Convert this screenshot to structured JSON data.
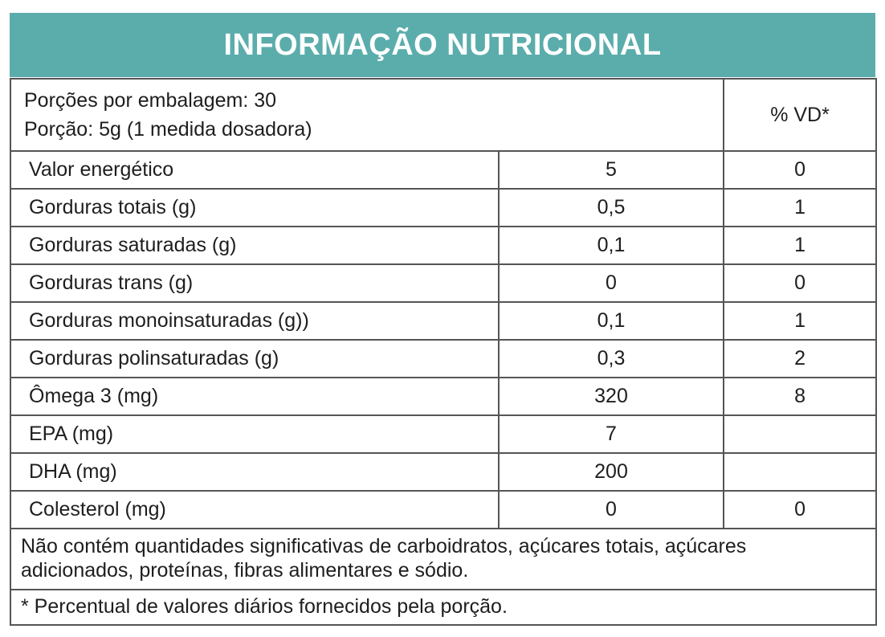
{
  "header": {
    "title": "INFORMAÇÃO NUTRICIONAL"
  },
  "serving": {
    "servings_per_package": "Porções por embalagem: 30",
    "serving_size": "Porção: 5g (1 medida dosadora)",
    "vd_column_header": "% VD*"
  },
  "rows": [
    {
      "label": "Valor energético",
      "value": "5",
      "vd": "0"
    },
    {
      "label": "Gorduras totais (g)",
      "value": "0,5",
      "vd": "1"
    },
    {
      "label": "Gorduras saturadas (g)",
      "value": "0,1",
      "vd": "1"
    },
    {
      "label": "Gorduras trans (g)",
      "value": "0",
      "vd": "0"
    },
    {
      "label": "Gorduras monoinsaturadas (g))",
      "value": "0,1",
      "vd": "1"
    },
    {
      "label": "Gorduras polinsaturadas (g)",
      "value": "0,3",
      "vd": "2"
    },
    {
      "label": "Ômega 3 (mg)",
      "value": "320",
      "vd": "8"
    },
    {
      "label": "EPA (mg)",
      "value": "7",
      "vd": ""
    },
    {
      "label": "DHA (mg)",
      "value": "200",
      "vd": ""
    },
    {
      "label": "Colesterol (mg)",
      "value": "0",
      "vd": "0"
    }
  ],
  "footnotes": {
    "no_significant_amounts": "Não contém quantidades significativas de carboidratos, açúcares totais, açúcares adicionados, proteínas, fibras alimentares e sódio.",
    "daily_values_note": "* Percentual de valores diários fornecidos pela porção."
  },
  "colors": {
    "accent_teal": "#5BADAC",
    "border_gray": "#555555",
    "text": "#1e1e1e"
  }
}
